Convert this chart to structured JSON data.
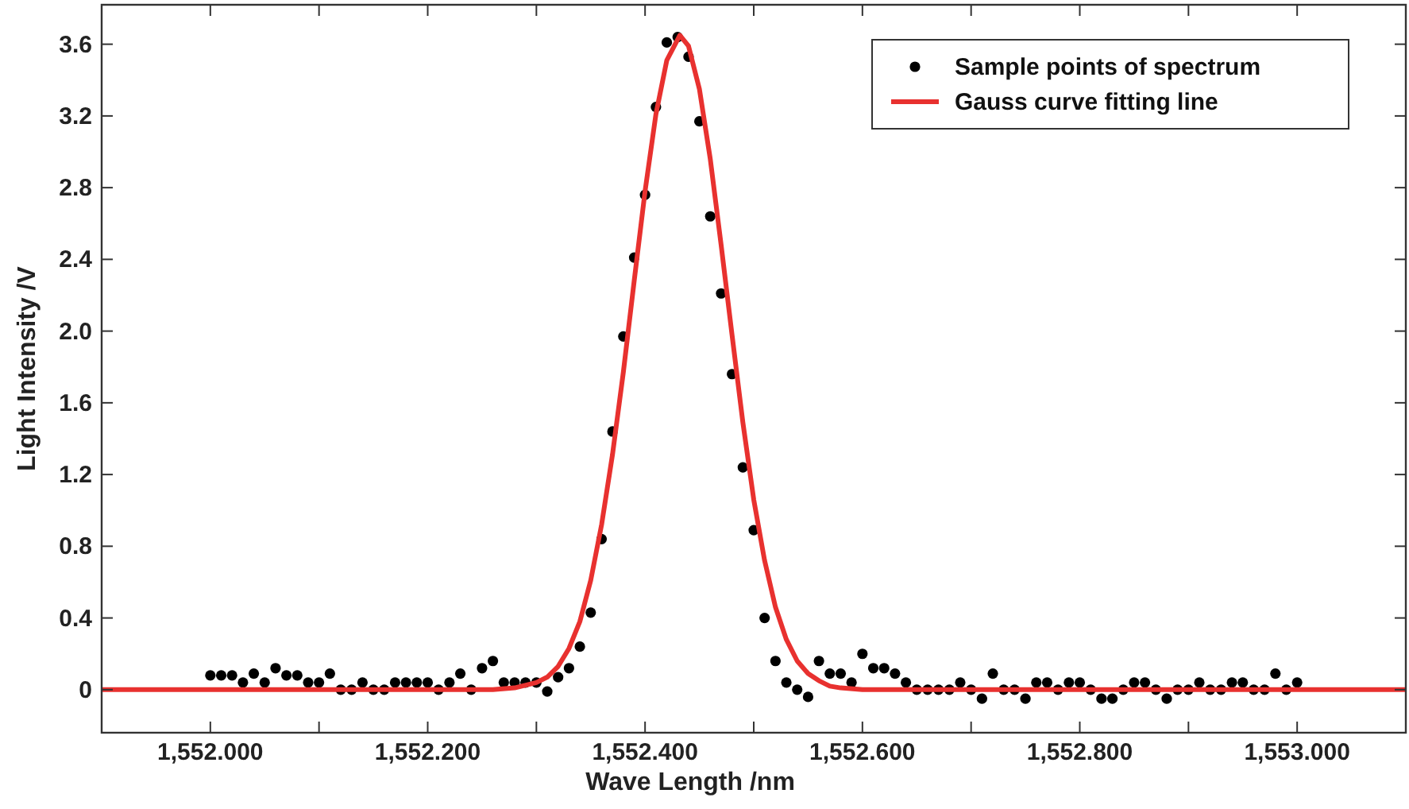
{
  "chart_data": {
    "type": "scatter",
    "xlabel": "Wave Length /nm",
    "ylabel": "Light Intensity /V",
    "xlim": [
      1551.9,
      1553.1
    ],
    "ylim": [
      -0.24,
      3.82
    ],
    "xticks": [
      {
        "value": 1552,
        "label": "1,552.000"
      },
      {
        "value": 1552.1,
        "label": null
      },
      {
        "value": 1552.2,
        "label": "1,552.200"
      },
      {
        "value": 1552.3,
        "label": null
      },
      {
        "value": 1552.4,
        "label": "1,552.400"
      },
      {
        "value": 1552.5,
        "label": null
      },
      {
        "value": 1552.6,
        "label": "1,552.600"
      },
      {
        "value": 1552.7,
        "label": null
      },
      {
        "value": 1552.8,
        "label": "1,552.800"
      },
      {
        "value": 1552.9,
        "label": null
      },
      {
        "value": 1553,
        "label": "1,553.000"
      }
    ],
    "yticks": [
      {
        "value": 0,
        "label": "0"
      },
      {
        "value": 0.4,
        "label": "0.4"
      },
      {
        "value": 0.8,
        "label": "0.8"
      },
      {
        "value": 1.2,
        "label": "1.2"
      },
      {
        "value": 1.6,
        "label": "1.6"
      },
      {
        "value": 2,
        "label": "2.0"
      },
      {
        "value": 2.4,
        "label": "2.4"
      },
      {
        "value": 2.8,
        "label": "2.8"
      },
      {
        "value": 3.2,
        "label": "3.2"
      },
      {
        "value": 3.6,
        "label": "3.6"
      }
    ],
    "grid": false,
    "legend": "top right",
    "series": [
      {
        "name": "Sample points of spectrum",
        "marker": "circle",
        "color": "#000000",
        "x": [
          1552,
          1552.01,
          1552.02,
          1552.03,
          1552.04,
          1552.05,
          1552.06,
          1552.07,
          1552.08,
          1552.09,
          1552.1,
          1552.11,
          1552.12,
          1552.13,
          1552.14,
          1552.15,
          1552.16,
          1552.17,
          1552.18,
          1552.19,
          1552.2,
          1552.21,
          1552.22,
          1552.23,
          1552.24,
          1552.25,
          1552.26,
          1552.27,
          1552.28,
          1552.29,
          1552.3,
          1552.31,
          1552.32,
          1552.33,
          1552.34,
          1552.35,
          1552.36,
          1552.37,
          1552.38,
          1552.39,
          1552.4,
          1552.41,
          1552.42,
          1552.43,
          1552.44,
          1552.45,
          1552.46,
          1552.47,
          1552.48,
          1552.49,
          1552.5,
          1552.51,
          1552.52,
          1552.53,
          1552.54,
          1552.55,
          1552.56,
          1552.57,
          1552.58,
          1552.59,
          1552.6,
          1552.61,
          1552.62,
          1552.63,
          1552.64,
          1552.65,
          1552.66,
          1552.67,
          1552.68,
          1552.69,
          1552.7,
          1552.71,
          1552.72,
          1552.73,
          1552.74,
          1552.75,
          1552.76,
          1552.77,
          1552.78,
          1552.79,
          1552.8,
          1552.81,
          1552.82,
          1552.83,
          1552.84,
          1552.85,
          1552.86,
          1552.87,
          1552.88,
          1552.89,
          1552.9,
          1552.91,
          1552.92,
          1552.93,
          1552.94,
          1552.95,
          1552.96,
          1552.97,
          1552.98,
          1552.99,
          1553
        ],
        "values": [
          0.08,
          0.08,
          0.08,
          0.04,
          0.09,
          0.04,
          0.12,
          0.08,
          0.08,
          0.04,
          0.04,
          0.09,
          0,
          0,
          0.04,
          0,
          0,
          0.04,
          0.04,
          0.04,
          0.04,
          0,
          0.04,
          0.09,
          0,
          0.12,
          0.16,
          0.04,
          0.04,
          0.04,
          0.04,
          -0.01,
          0.07,
          0.12,
          0.24,
          0.43,
          0.84,
          1.44,
          1.97,
          2.41,
          2.76,
          3.25,
          3.61,
          3.64,
          3.53,
          3.17,
          2.64,
          2.21,
          1.76,
          1.24,
          0.89,
          0.4,
          0.16,
          0.04,
          0,
          -0.04,
          0.16,
          0.09,
          0.09,
          0.04,
          0.2,
          0.12,
          0.12,
          0.09,
          0.04,
          0,
          0,
          0,
          0,
          0.04,
          0,
          -0.05,
          0.09,
          0,
          0,
          -0.05,
          0.04,
          0.04,
          0,
          0.04,
          0.04,
          0,
          -0.05,
          -0.05,
          0,
          0.04,
          0.04,
          0,
          -0.05,
          0,
          0,
          0.04,
          0,
          0,
          0.04,
          0.04,
          0,
          0,
          0.09,
          0,
          0.04
        ]
      },
      {
        "name": "Gauss curve fitting line",
        "type": "line",
        "marker": "none",
        "line_style": "solid",
        "color": "#e8312f",
        "x": [
          1551.9,
          1552.26,
          1552.28,
          1552.3,
          1552.31,
          1552.32,
          1552.33,
          1552.34,
          1552.35,
          1552.36,
          1552.37,
          1552.38,
          1552.39,
          1552.4,
          1552.41,
          1552.42,
          1552.432,
          1552.44,
          1552.45,
          1552.46,
          1552.47,
          1552.48,
          1552.49,
          1552.5,
          1552.51,
          1552.52,
          1552.53,
          1552.54,
          1552.55,
          1552.56,
          1552.57,
          1552.58,
          1552.6,
          1553.1
        ],
        "values": [
          0,
          0,
          0.01,
          0.04,
          0.07,
          0.13,
          0.23,
          0.38,
          0.61,
          0.92,
          1.31,
          1.77,
          2.28,
          2.78,
          3.21,
          3.51,
          3.65,
          3.59,
          3.35,
          2.96,
          2.48,
          1.98,
          1.49,
          1.06,
          0.72,
          0.46,
          0.28,
          0.16,
          0.09,
          0.05,
          0.02,
          0.01,
          0,
          0
        ]
      }
    ]
  }
}
